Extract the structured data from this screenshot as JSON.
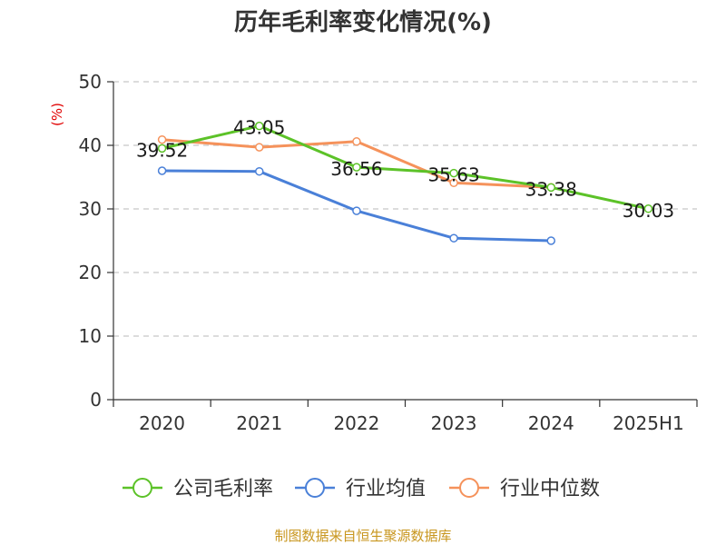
{
  "chart_data": {
    "type": "line",
    "title": "历年毛利率变化情况(%)",
    "ylabel": "(%)",
    "categories": [
      "2020",
      "2021",
      "2022",
      "2023",
      "2024",
      "2025H1"
    ],
    "ylim": [
      0,
      50
    ],
    "yticks": [
      0,
      10,
      20,
      30,
      40,
      50
    ],
    "grid": true,
    "legend_position": "bottom",
    "series": [
      {
        "name": "公司毛利率",
        "color": "#5cc228",
        "values": [
          39.52,
          43.05,
          36.56,
          35.63,
          33.38,
          30.03
        ],
        "labels": [
          "39.52",
          "43.05",
          "36.56",
          "35.63",
          "33.38",
          "30.03"
        ]
      },
      {
        "name": "行业均值",
        "color": "#4a80d8",
        "values": [
          36.0,
          35.9,
          29.7,
          25.4,
          25.0,
          null
        ]
      },
      {
        "name": "行业中位数",
        "color": "#f5925b",
        "values": [
          40.9,
          39.7,
          40.6,
          34.1,
          33.4,
          null
        ]
      }
    ],
    "source": "制图数据来自恒生聚源数据库"
  }
}
